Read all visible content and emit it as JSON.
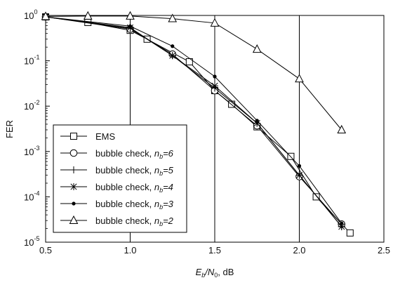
{
  "chart_data": {
    "type": "line",
    "xlabel": {
      "main": "E",
      "sub1": "b",
      "slash": "/N",
      "sub2": "0",
      "tail": ", dB"
    },
    "ylabel": "FER",
    "xlim": [
      0.5,
      2.5
    ],
    "ylim": [
      1e-05,
      1
    ],
    "yscale": "log",
    "x_ticks": [
      0.5,
      1.0,
      1.5,
      2.0,
      2.5
    ],
    "x_tick_labels": [
      "0.5",
      "1.0",
      "1.5",
      "2.0",
      "2.5"
    ],
    "y_ticks": [
      {
        "value": 1,
        "base": "10",
        "exp": "0"
      },
      {
        "value": 0.1,
        "base": "10",
        "exp": "-1"
      },
      {
        "value": 0.01,
        "base": "10",
        "exp": "-2"
      },
      {
        "value": 0.001,
        "base": "10",
        "exp": "-3"
      },
      {
        "value": 0.0001,
        "base": "10",
        "exp": "-4"
      },
      {
        "value": 1e-05,
        "base": "10",
        "exp": "-5"
      }
    ],
    "vertical_gridlines": [
      1.0,
      1.5,
      2.0
    ],
    "legend_position": "bottom-left",
    "series": [
      {
        "name": "EMS",
        "nb": "",
        "marker": "square",
        "x": [
          0.5,
          0.75,
          1.0,
          1.1,
          1.35,
          1.5,
          1.6,
          1.75,
          1.95,
          2.1,
          2.3
        ],
        "y": [
          0.93,
          0.7,
          0.47,
          0.3,
          0.095,
          0.022,
          0.011,
          0.0035,
          0.00078,
          0.0001,
          1.6e-05
        ]
      },
      {
        "name": "bubble check, ",
        "nb": "6",
        "marker": "circle",
        "x": [
          0.5,
          1.0,
          1.25,
          1.5,
          1.75,
          2.0,
          2.25
        ],
        "y": [
          0.93,
          0.5,
          0.14,
          0.022,
          0.0037,
          0.00028,
          2.5e-05
        ]
      },
      {
        "name": "bubble check, ",
        "nb": "5",
        "marker": "plus",
        "x": [
          0.5,
          1.0,
          1.25,
          1.5,
          1.75,
          2.0,
          2.25
        ],
        "y": [
          0.93,
          0.52,
          0.13,
          0.025,
          0.0042,
          0.0003,
          2.2e-05
        ]
      },
      {
        "name": "bubble check, ",
        "nb": "4",
        "marker": "star",
        "x": [
          0.5,
          1.0,
          1.25,
          1.5,
          1.75,
          2.0,
          2.25
        ],
        "y": [
          0.93,
          0.54,
          0.13,
          0.028,
          0.0042,
          0.0003,
          2.2e-05
        ]
      },
      {
        "name": "bubble check, ",
        "nb": "3",
        "marker": "dot",
        "x": [
          0.5,
          1.0,
          1.25,
          1.5,
          1.75,
          2.0,
          2.25
        ],
        "y": [
          0.93,
          0.58,
          0.21,
          0.045,
          0.0048,
          0.00048,
          2.6e-05
        ]
      },
      {
        "name": "bubble check, ",
        "nb": "2",
        "marker": "triangle",
        "x": [
          0.5,
          0.75,
          1.0,
          1.25,
          1.5,
          1.75,
          2.0,
          2.25
        ],
        "y": [
          0.95,
          0.97,
          0.97,
          0.85,
          0.68,
          0.18,
          0.04,
          0.003
        ]
      }
    ]
  }
}
